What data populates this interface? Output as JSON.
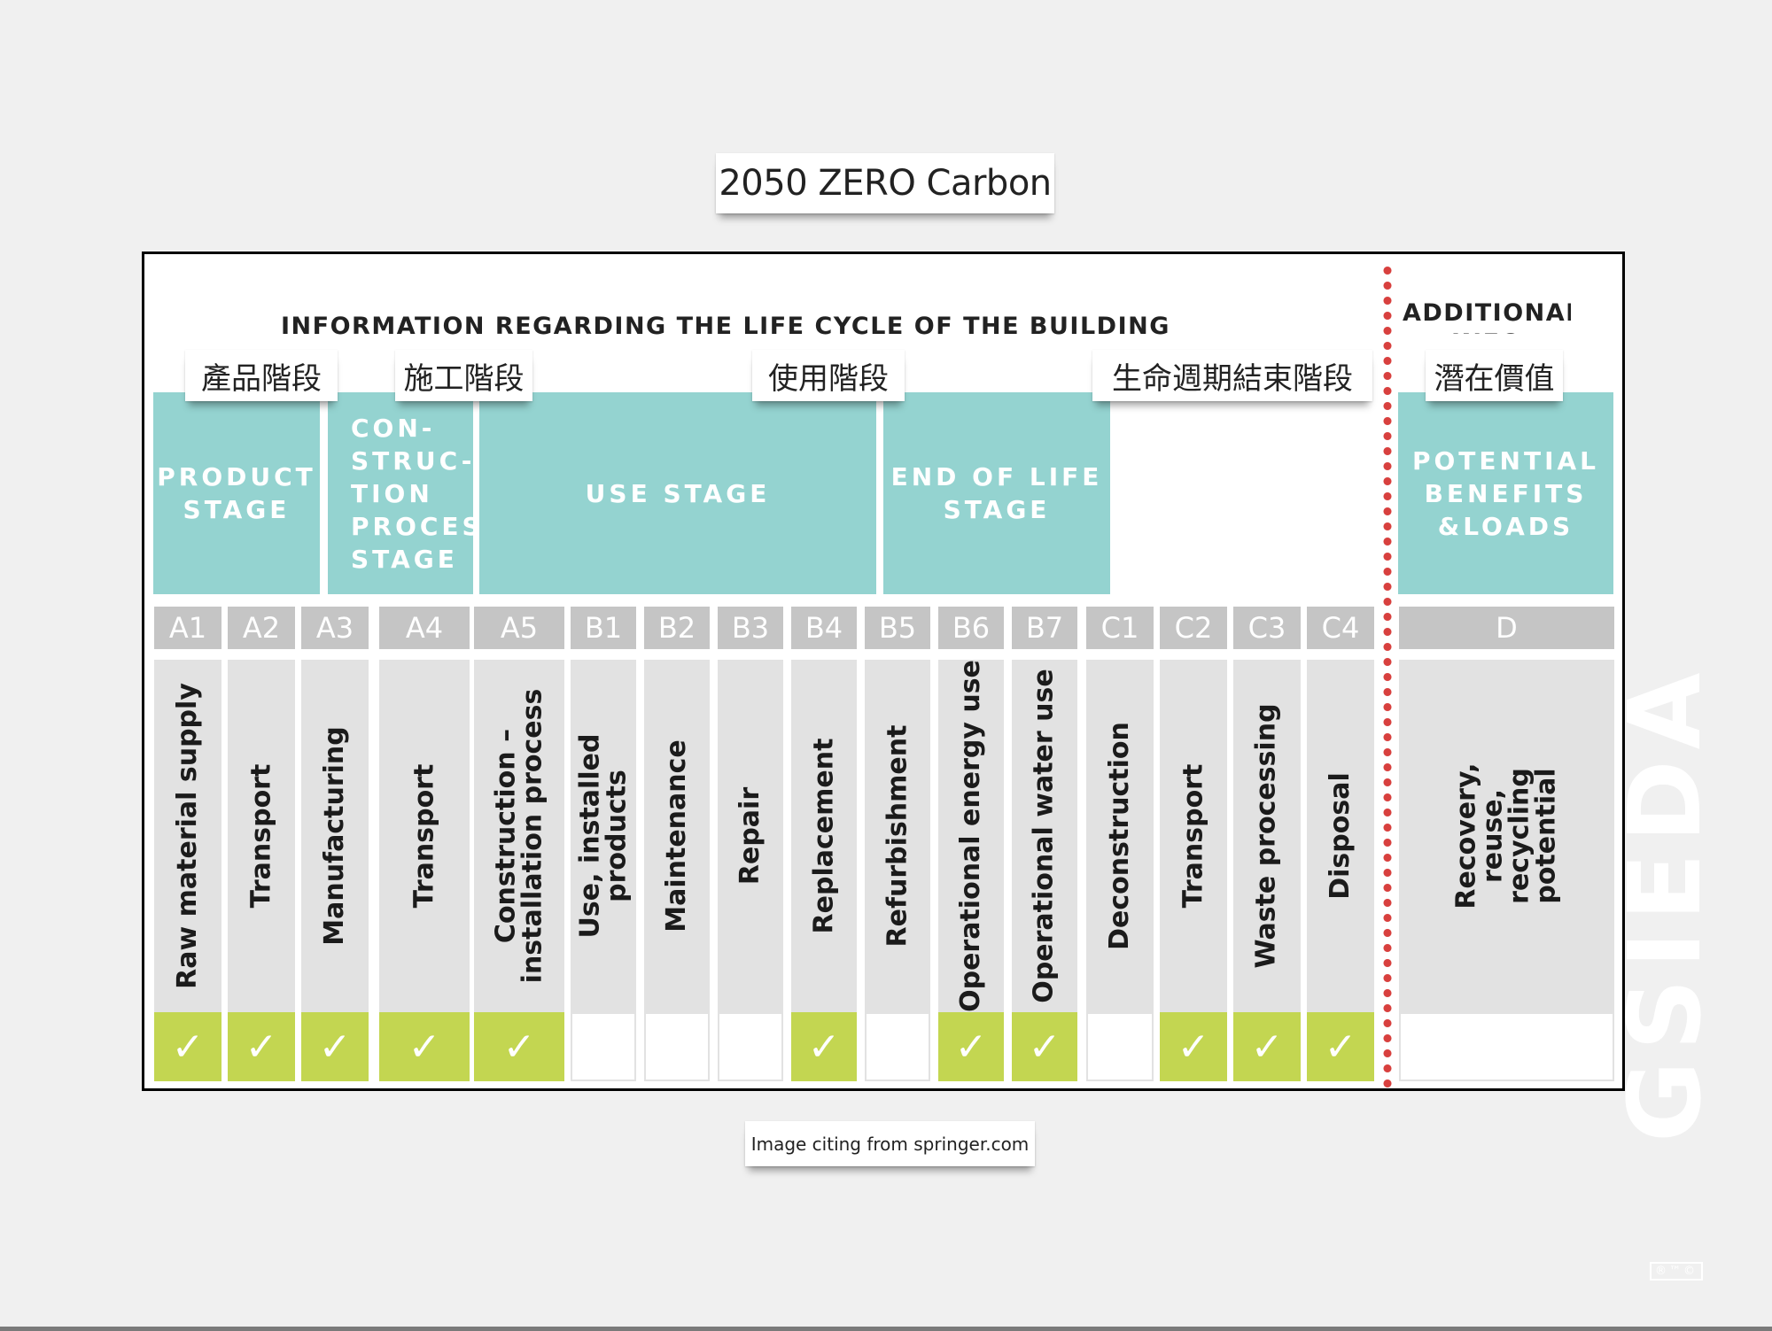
{
  "title": "2050 ZERO Carbon",
  "main_heading": "INFORMATION REGARDING THE LIFE CYCLE OF THE BUILDING",
  "additional_heading": "ADDITIONAL\nINFO",
  "colors": {
    "stage_teal": "#94d3d0",
    "check_green": "#c3d651",
    "code_gray": "#c5c5c5",
    "desc_gray": "#e2e2e2",
    "divider_red": "#d8403e"
  },
  "stages": [
    {
      "zh": "產品階段",
      "en": "PRODUCT\nSTAGE"
    },
    {
      "zh": "施工階段",
      "en": "CON-\nSTRUC-\nTION\nPROCESS\nSTAGE"
    },
    {
      "zh": "使用階段",
      "en": "USE STAGE"
    },
    {
      "zh": "生命週期結束階段",
      "en": "END OF LIFE\nSTAGE"
    },
    {
      "zh": "潛在價值",
      "en": "POTENTIAL\nBENEFITS\n&LOADS"
    }
  ],
  "modules": [
    {
      "code": "A1",
      "label": "Raw material supply",
      "checked": true
    },
    {
      "code": "A2",
      "label": "Transport",
      "checked": true
    },
    {
      "code": "A3",
      "label": "Manufacturing",
      "checked": true
    },
    {
      "code": "A4",
      "label": "Transport",
      "checked": true
    },
    {
      "code": "A5",
      "label": "Construction –\ninstallation process",
      "checked": true
    },
    {
      "code": "B1",
      "label": "Use, installed\nproducts",
      "checked": false
    },
    {
      "code": "B2",
      "label": "Maintenance",
      "checked": false
    },
    {
      "code": "B3",
      "label": "Repair",
      "checked": false
    },
    {
      "code": "B4",
      "label": "Replacement",
      "checked": true
    },
    {
      "code": "B5",
      "label": "Refurbishment",
      "checked": false
    },
    {
      "code": "B6",
      "label": "Operational energy use",
      "checked": true
    },
    {
      "code": "B7",
      "label": "Operational water use",
      "checked": true
    },
    {
      "code": "C1",
      "label": "Deconstruction",
      "checked": false
    },
    {
      "code": "C2",
      "label": "Transport",
      "checked": true
    },
    {
      "code": "C3",
      "label": "Waste processing",
      "checked": true
    },
    {
      "code": "C4",
      "label": "Disposal",
      "checked": true
    },
    {
      "code": "D",
      "label": "Recovery,\nreuse,\nrecycling\npotential",
      "checked": false
    }
  ],
  "check_symbol": "✓",
  "source": "Image citing from springer.com",
  "watermark": "GSIEDA",
  "watermark_marks": "®™©"
}
